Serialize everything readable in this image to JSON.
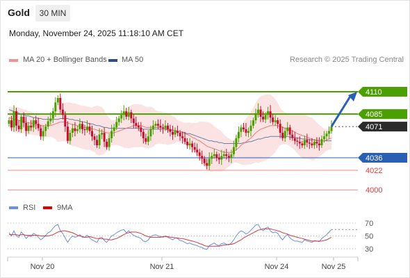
{
  "header": {
    "symbol": "Gold",
    "timeframe": "30 MIN",
    "datetime": "Monday, November 24, 2025 11:18:10 AM CET"
  },
  "legend": {
    "ma20_bb": "MA 20 + Bollinger Bands",
    "ma50": "MA 50",
    "research": "Research © 2025 Trading Central"
  },
  "rsi_legend": {
    "rsi": "RSI",
    "ma9": "9MA"
  },
  "colors": {
    "green": "#4aa000",
    "blue": "#2a5fb4",
    "red": "#e33a3a",
    "dark": "#2b2b2b",
    "bollinger": "#fbdada",
    "ma50": "#6a7fa8",
    "ma20": "#f07a7a",
    "rsi": "#6b8fe3",
    "rsi_ma": "#d63a3a",
    "arrow": "#2a5fb4"
  },
  "chart_data": [
    {
      "type": "candlestick",
      "x_ticks": [
        "Nov 20",
        "Nov 21",
        "Nov 24",
        "Nov 25"
      ],
      "ylim": [
        3995,
        4120
      ],
      "levels": [
        {
          "label": "4110",
          "value": 4110,
          "kind": "resistance"
        },
        {
          "label": "4085",
          "value": 4085,
          "kind": "resistance"
        },
        {
          "label": "4071",
          "value": 4071,
          "kind": "last"
        },
        {
          "label": "4036",
          "value": 4036,
          "kind": "pivot"
        },
        {
          "label": "4022",
          "value": 4022,
          "kind": "support"
        },
        {
          "label": "4000",
          "value": 4000,
          "kind": "support"
        }
      ],
      "close": [
        4078,
        4070,
        4088,
        4072,
        4068,
        4082,
        4075,
        4066,
        4072,
        4070,
        4078,
        4074,
        4069,
        4060,
        4066,
        4071,
        4077,
        4080,
        4088,
        4098,
        4103,
        4090,
        4084,
        4071,
        4055,
        4064,
        4069,
        4066,
        4068,
        4074,
        4068,
        4067,
        4071,
        4066,
        4060,
        4056,
        4050,
        4062,
        4064,
        4054,
        4048,
        4058,
        4066,
        4070,
        4076,
        4080,
        4084,
        4088,
        4082,
        4087,
        4080,
        4075,
        4072,
        4070,
        4065,
        4058,
        4054,
        4060,
        4068,
        4072,
        4074,
        4072,
        4070,
        4069,
        4072,
        4068,
        4065,
        4062,
        4066,
        4064,
        4060,
        4058,
        4054,
        4050,
        4052,
        4048,
        4045,
        4042,
        4038,
        4035,
        4030,
        4027,
        4035,
        4038,
        4040,
        4036,
        4034,
        4038,
        4040,
        4038,
        4036,
        4040,
        4048,
        4058,
        4065,
        4070,
        4068,
        4064,
        4066,
        4072,
        4078,
        4086,
        4090,
        4082,
        4079,
        4084,
        4088,
        4081,
        4076,
        4078,
        4074,
        4064,
        4058,
        4066,
        4070,
        4062,
        4058,
        4055,
        4054,
        4052,
        4050,
        4056,
        4053,
        4052,
        4050,
        4054,
        4052,
        4050,
        4057,
        4060,
        4063,
        4066,
        4071
      ],
      "ma20": [
        4081,
        4080,
        4079,
        4079,
        4078,
        4077,
        4077,
        4076,
        4075,
        4075,
        4074,
        4073,
        4073,
        4072,
        4072,
        4072,
        4072,
        4072,
        4073,
        4074,
        4075,
        4076,
        4076,
        4076,
        4075,
        4074,
        4073,
        4073,
        4072,
        4071,
        4070,
        4070,
        4069,
        4069,
        4068,
        4068,
        4067,
        4066,
        4066,
        4065,
        4064,
        4064,
        4064,
        4064,
        4065,
        4066,
        4067,
        4068,
        4069,
        4070,
        4071,
        4072,
        4072,
        4072,
        4072,
        4071,
        4070,
        4070,
        4070,
        4070,
        4070,
        4070,
        4070,
        4069,
        4069,
        4068,
        4068,
        4067,
        4067,
        4066,
        4065,
        4064,
        4063,
        4062,
        4061,
        4059,
        4058,
        4056,
        4055,
        4053,
        4051,
        4049,
        4048,
        4047,
        4046,
        4045,
        4044,
        4043,
        4042,
        4042,
        4042,
        4042,
        4043,
        4045,
        4047,
        4050,
        4052,
        4054,
        4056,
        4058,
        4061,
        4064,
        4066,
        4068,
        4069,
        4070,
        4071,
        4072,
        4072,
        4072,
        4072,
        4071,
        4070,
        4069,
        4068,
        4067,
        4066,
        4065,
        4063,
        4062,
        4061,
        4060,
        4059,
        4058,
        4057,
        4056,
        4056,
        4055,
        4055,
        4055,
        4056,
        4057,
        4058
      ],
      "ma50": [
        4090,
        4089,
        4088,
        4087,
        4086,
        4085,
        4084,
        4083,
        4083,
        4082,
        4081,
        4081,
        4080,
        4080,
        4079,
        4079,
        4079,
        4079,
        4079,
        4079,
        4079,
        4080,
        4080,
        4080,
        4080,
        4079,
        4079,
        4078,
        4078,
        4077,
        4076,
        4076,
        4075,
        4074,
        4074,
        4073,
        4072,
        4072,
        4071,
        4070,
        4070,
        4069,
        4069,
        4069,
        4069,
        4069,
        4069,
        4069,
        4069,
        4069,
        4069,
        4069,
        4069,
        4069,
        4069,
        4068,
        4068,
        4068,
        4068,
        4068,
        4068,
        4068,
        4068,
        4068,
        4068,
        4067,
        4067,
        4067,
        4066,
        4066,
        4065,
        4065,
        4064,
        4063,
        4063,
        4062,
        4061,
        4060,
        4059,
        4058,
        4057,
        4056,
        4055,
        4055,
        4054,
        4054,
        4053,
        4053,
        4052,
        4052,
        4052,
        4052,
        4052,
        4052,
        4052,
        4052,
        4053,
        4053,
        4054,
        4054,
        4055,
        4056,
        4057,
        4057,
        4058,
        4059,
        4059,
        4060,
        4060,
        4060,
        4060,
        4060,
        4060,
        4060,
        4060,
        4059,
        4059,
        4059,
        4058,
        4058,
        4057,
        4057,
        4057,
        4056,
        4056,
        4056,
        4055,
        4055,
        4055,
        4055,
        4055,
        4055,
        4055
      ]
    },
    {
      "type": "line",
      "title": "RSI",
      "ylim": [
        20,
        80
      ],
      "y_ticks": [
        70,
        50,
        30
      ],
      "series": [
        {
          "name": "RSI",
          "values": [
            55,
            50,
            58,
            50,
            48,
            56,
            52,
            46,
            50,
            49,
            54,
            52,
            48,
            44,
            47,
            51,
            55,
            57,
            62,
            66,
            68,
            58,
            54,
            47,
            40,
            46,
            50,
            48,
            49,
            52,
            48,
            48,
            51,
            47,
            44,
            42,
            40,
            47,
            48,
            43,
            40,
            45,
            50,
            52,
            55,
            57,
            59,
            60,
            55,
            58,
            54,
            51,
            49,
            48,
            46,
            42,
            41,
            44,
            49,
            51,
            52,
            50,
            49,
            48,
            50,
            48,
            46,
            44,
            47,
            46,
            43,
            42,
            40,
            38,
            39,
            37,
            36,
            35,
            33,
            32,
            30,
            29,
            35,
            37,
            39,
            36,
            35,
            38,
            39,
            37,
            36,
            39,
            44,
            50,
            55,
            58,
            56,
            53,
            55,
            59,
            63,
            67,
            68,
            61,
            58,
            62,
            64,
            58,
            55,
            56,
            54,
            48,
            44,
            49,
            52,
            47,
            44,
            42,
            42,
            41,
            40,
            44,
            42,
            41,
            40,
            43,
            42,
            41,
            46,
            49,
            52,
            56,
            60
          ]
        },
        {
          "name": "9MA",
          "values": [
            52,
            52,
            52,
            52,
            51,
            52,
            52,
            51,
            51,
            51,
            51,
            51,
            51,
            50,
            50,
            50,
            50,
            51,
            52,
            54,
            56,
            57,
            58,
            58,
            57,
            56,
            55,
            53,
            51,
            50,
            49,
            48,
            48,
            49,
            48,
            47,
            46,
            46,
            46,
            45,
            45,
            44,
            44,
            45,
            46,
            48,
            50,
            52,
            54,
            55,
            56,
            56,
            56,
            55,
            54,
            52,
            50,
            49,
            48,
            48,
            48,
            48,
            48,
            49,
            49,
            49,
            48,
            48,
            47,
            47,
            46,
            46,
            45,
            44,
            43,
            42,
            41,
            40,
            38,
            37,
            35,
            34,
            34,
            34,
            34,
            34,
            34,
            35,
            36,
            36,
            37,
            37,
            38,
            40,
            42,
            44,
            47,
            49,
            51,
            53,
            55,
            57,
            59,
            60,
            61,
            61,
            61,
            61,
            60,
            59,
            58,
            57,
            55,
            54,
            53,
            51,
            50,
            49,
            48,
            47,
            46,
            45,
            44,
            43,
            42,
            42,
            42,
            42,
            42,
            43,
            44,
            46,
            48
          ]
        }
      ]
    }
  ]
}
